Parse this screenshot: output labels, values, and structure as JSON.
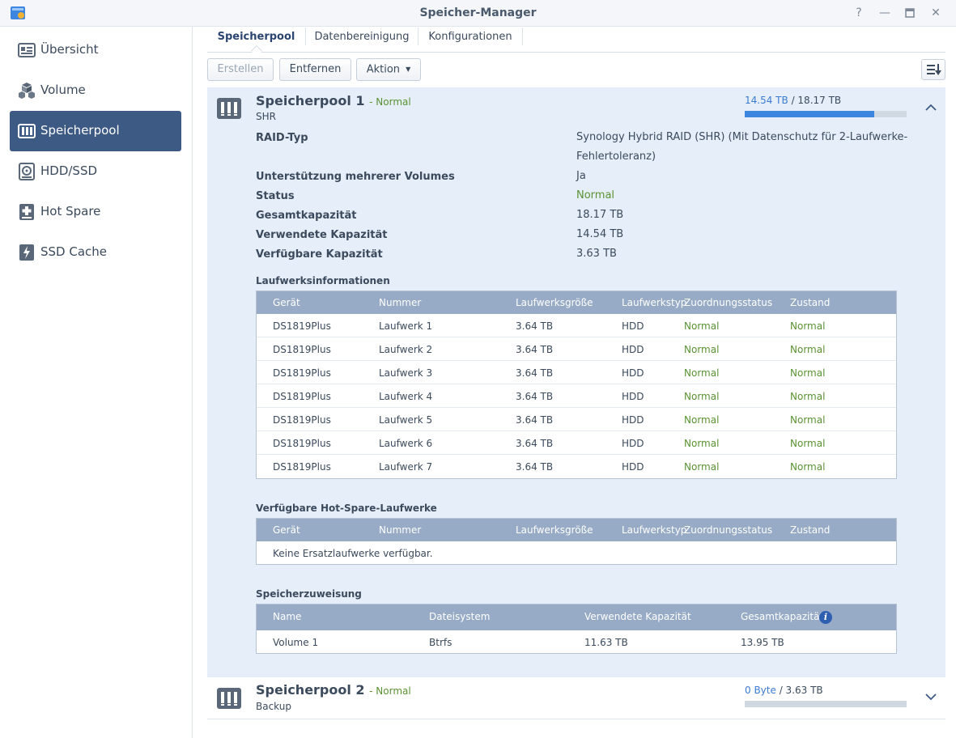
{
  "window": {
    "title": "Speicher-Manager",
    "controls": [
      "help-icon",
      "minimize-icon",
      "maximize-icon",
      "close-icon"
    ]
  },
  "sidebar": {
    "items": [
      {
        "label": "Übersicht",
        "icon": "overview-icon",
        "active": false
      },
      {
        "label": "Volume",
        "icon": "volume-icon",
        "active": false
      },
      {
        "label": "Speicherpool",
        "icon": "storage-pool-icon",
        "active": true
      },
      {
        "label": "HDD/SSD",
        "icon": "hdd-icon",
        "active": false
      },
      {
        "label": "Hot Spare",
        "icon": "hot-spare-icon",
        "active": false
      },
      {
        "label": "SSD Cache",
        "icon": "ssd-cache-icon",
        "active": false
      }
    ]
  },
  "tabs": [
    {
      "label": "Speicherpool",
      "active": true
    },
    {
      "label": "Datenbereinigung",
      "active": false
    },
    {
      "label": "Konfigurationen",
      "active": false
    }
  ],
  "toolbar": {
    "create_label": "Erstellen",
    "remove_label": "Entfernen",
    "action_label": "Aktion"
  },
  "pool1": {
    "name": "Speicherpool 1",
    "status": "- Normal",
    "type": "SHR",
    "capacity_used": "14.54 TB",
    "capacity_total": "/ 18.17 TB",
    "usage_fraction": 0.8,
    "properties": [
      {
        "label": "RAID-Typ",
        "value": "Synology Hybrid RAID (SHR) (Mit Datenschutz für 2-Laufwerke-Fehlertoleranz)"
      },
      {
        "label": "Unterstützung mehrerer Volumes",
        "value": "Ja"
      },
      {
        "label": "Status",
        "value": "Normal"
      },
      {
        "label": "Gesamtkapazität",
        "value": "18.17 TB"
      },
      {
        "label": "Verwendete Kapazität",
        "value": "14.54 TB"
      },
      {
        "label": "Verfügbare Kapazität",
        "value": "3.63 TB"
      }
    ],
    "drives_title": "Laufwerksinformationen",
    "drive_columns": [
      "Gerät",
      "Nummer",
      "Laufwerksgröße",
      "Laufwerkstyp",
      "Zuordnungsstatus",
      "Zustand"
    ],
    "drives": [
      [
        "DS1819Plus",
        "Laufwerk 1",
        "3.64 TB",
        "HDD",
        "Normal",
        "Normal"
      ],
      [
        "DS1819Plus",
        "Laufwerk 2",
        "3.64 TB",
        "HDD",
        "Normal",
        "Normal"
      ],
      [
        "DS1819Plus",
        "Laufwerk 3",
        "3.64 TB",
        "HDD",
        "Normal",
        "Normal"
      ],
      [
        "DS1819Plus",
        "Laufwerk 4",
        "3.64 TB",
        "HDD",
        "Normal",
        "Normal"
      ],
      [
        "DS1819Plus",
        "Laufwerk 5",
        "3.64 TB",
        "HDD",
        "Normal",
        "Normal"
      ],
      [
        "DS1819Plus",
        "Laufwerk 6",
        "3.64 TB",
        "HDD",
        "Normal",
        "Normal"
      ],
      [
        "DS1819Plus",
        "Laufwerk 7",
        "3.64 TB",
        "HDD",
        "Normal",
        "Normal"
      ]
    ],
    "hotspare_title": "Verfügbare Hot-Spare-Laufwerke",
    "hotspare_empty": "Keine Ersatzlaufwerke verfügbar.",
    "alloc_title": "Speicherzuweisung",
    "alloc_columns": [
      "Name",
      "Dateisystem",
      "Verwendete Kapazität",
      "Gesamtkapazität"
    ],
    "alloc_rows": [
      [
        "Volume 1",
        "Btrfs",
        "11.63 TB",
        "13.95 TB"
      ]
    ]
  },
  "pool2": {
    "name": "Speicherpool 2",
    "status": "- Normal",
    "type": "Backup",
    "capacity_used": "0 Byte",
    "capacity_total": "/ 3.63 TB",
    "usage_fraction": 0.0
  },
  "colors": {
    "accent": "#3d5a85",
    "status_ok": "#5a9233",
    "usage_bar": "#3d86e0",
    "grid_header": "#97abc6",
    "pool_bg": "#e6eef9"
  }
}
